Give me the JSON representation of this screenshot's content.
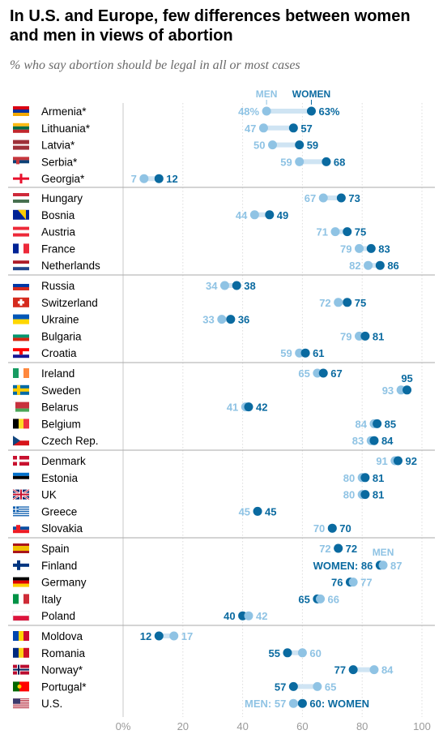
{
  "header": {
    "title": "In U.S. and Europe, few differences between women and men in views of abortion",
    "subtitle": "% who say abortion should be legal in all or most cases"
  },
  "legend": {
    "men": "MEN",
    "women": "WOMEN"
  },
  "colors": {
    "men": "#8fc3e4",
    "women": "#0a6aa0",
    "connector": "#cfe4f3",
    "grid": "#dddddd",
    "separator": "#aaaaaa"
  },
  "inline_labels": {
    "finland_women_prefix": "WOMEN: ",
    "finland_men_header": "MEN",
    "us_men_prefix": "MEN: ",
    "us_women_suffix": ": WOMEN"
  },
  "chart_data": {
    "type": "dot-plot",
    "title": "In U.S. and Europe, few differences between women and men in views of abortion",
    "subtitle": "% who say abortion should be legal in all or most cases",
    "xlim": [
      0,
      100
    ],
    "x_ticks": [
      0,
      20,
      40,
      60,
      80,
      100
    ],
    "x_tick_labels": [
      "0%",
      "20",
      "40",
      "60",
      "80",
      "100"
    ],
    "series_names": [
      "MEN",
      "WOMEN"
    ],
    "groups": [
      [
        {
          "country": "Armenia*",
          "flag": "armenia-flag",
          "men": 48,
          "women": 63,
          "men_label": "48%",
          "women_label": "63%"
        },
        {
          "country": "Lithuania*",
          "flag": "lithuania-flag",
          "men": 47,
          "women": 57,
          "men_label": "47",
          "women_label": "57"
        },
        {
          "country": "Latvia*",
          "flag": "latvia-flag",
          "men": 50,
          "women": 59,
          "men_label": "50",
          "women_label": "59"
        },
        {
          "country": "Serbia*",
          "flag": "serbia-flag",
          "men": 59,
          "women": 68,
          "men_label": "59",
          "women_label": "68"
        },
        {
          "country": "Georgia*",
          "flag": "georgia-flag",
          "men": 7,
          "women": 12,
          "men_label": "7",
          "women_label": "12"
        }
      ],
      [
        {
          "country": "Hungary",
          "flag": "hungary-flag",
          "men": 67,
          "women": 73,
          "men_label": "67",
          "women_label": "73"
        },
        {
          "country": "Bosnia",
          "flag": "bosnia-flag",
          "men": 44,
          "women": 49,
          "men_label": "44",
          "women_label": "49"
        },
        {
          "country": "Austria",
          "flag": "austria-flag",
          "men": 71,
          "women": 75,
          "men_label": "71",
          "women_label": "75"
        },
        {
          "country": "France",
          "flag": "france-flag",
          "men": 79,
          "women": 83,
          "men_label": "79",
          "women_label": "83"
        },
        {
          "country": "Netherlands",
          "flag": "netherlands-flag",
          "men": 82,
          "women": 86,
          "men_label": "82",
          "women_label": "86"
        }
      ],
      [
        {
          "country": "Russia",
          "flag": "russia-flag",
          "men": 34,
          "women": 38,
          "men_label": "34",
          "women_label": "38"
        },
        {
          "country": "Switzerland",
          "flag": "switzerland-flag",
          "men": 72,
          "women": 75,
          "men_label": "72",
          "women_label": "75"
        },
        {
          "country": "Ukraine",
          "flag": "ukraine-flag",
          "men": 33,
          "women": 36,
          "men_label": "33",
          "women_label": "36"
        },
        {
          "country": "Bulgaria",
          "flag": "bulgaria-flag",
          "men": 79,
          "women": 81,
          "men_label": "79",
          "women_label": "81"
        },
        {
          "country": "Croatia",
          "flag": "croatia-flag",
          "men": 59,
          "women": 61,
          "men_label": "59",
          "women_label": "61"
        }
      ],
      [
        {
          "country": "Ireland",
          "flag": "ireland-flag",
          "men": 65,
          "women": 67,
          "men_label": "65",
          "women_label": "67"
        },
        {
          "country": "Sweden",
          "flag": "sweden-flag",
          "men": 93,
          "women": 95,
          "men_label": "93",
          "women_label": "95"
        },
        {
          "country": "Belarus",
          "flag": "belarus-flag",
          "men": 41,
          "women": 42,
          "men_label": "41",
          "women_label": "42"
        },
        {
          "country": "Belgium",
          "flag": "belgium-flag",
          "men": 84,
          "women": 85,
          "men_label": "84",
          "women_label": "85"
        },
        {
          "country": "Czech Rep.",
          "flag": "czech-flag",
          "men": 83,
          "women": 84,
          "men_label": "83",
          "women_label": "84"
        }
      ],
      [
        {
          "country": "Denmark",
          "flag": "denmark-flag",
          "men": 91,
          "women": 92,
          "men_label": "91",
          "women_label": "92"
        },
        {
          "country": "Estonia",
          "flag": "estonia-flag",
          "men": 80,
          "women": 81,
          "men_label": "80",
          "women_label": "81"
        },
        {
          "country": "UK",
          "flag": "uk-flag",
          "men": 80,
          "women": 81,
          "men_label": "80",
          "women_label": "81"
        },
        {
          "country": "Greece",
          "flag": "greece-flag",
          "men": 45,
          "women": 45,
          "men_label": "45",
          "women_label": "45"
        },
        {
          "country": "Slovakia",
          "flag": "slovakia-flag",
          "men": 70,
          "women": 70,
          "men_label": "70",
          "women_label": "70"
        }
      ],
      [
        {
          "country": "Spain",
          "flag": "spain-flag",
          "men": 72,
          "women": 72,
          "men_label": "72",
          "women_label": "72"
        },
        {
          "country": "Finland",
          "flag": "finland-flag",
          "men": 87,
          "women": 86,
          "men_label": "87",
          "women_label": "86"
        },
        {
          "country": "Germany",
          "flag": "germany-flag",
          "men": 77,
          "women": 76,
          "men_label": "77",
          "women_label": "76"
        },
        {
          "country": "Italy",
          "flag": "italy-flag",
          "men": 66,
          "women": 65,
          "men_label": "66",
          "women_label": "65"
        },
        {
          "country": "Poland",
          "flag": "poland-flag",
          "men": 42,
          "women": 40,
          "men_label": "42",
          "women_label": "40"
        }
      ],
      [
        {
          "country": "Moldova",
          "flag": "moldova-flag",
          "men": 17,
          "women": 12,
          "men_label": "17",
          "women_label": "12"
        },
        {
          "country": "Romania",
          "flag": "romania-flag",
          "men": 60,
          "women": 55,
          "men_label": "60",
          "women_label": "55"
        },
        {
          "country": "Norway*",
          "flag": "norway-flag",
          "men": 84,
          "women": 77,
          "men_label": "84",
          "women_label": "77"
        },
        {
          "country": "Portugal*",
          "flag": "portugal-flag",
          "men": 65,
          "women": 57,
          "men_label": "65",
          "women_label": "57"
        },
        {
          "country": "U.S.",
          "flag": "us-flag",
          "men": 57,
          "women": 60,
          "men_label": "57",
          "women_label": "60"
        }
      ]
    ]
  }
}
